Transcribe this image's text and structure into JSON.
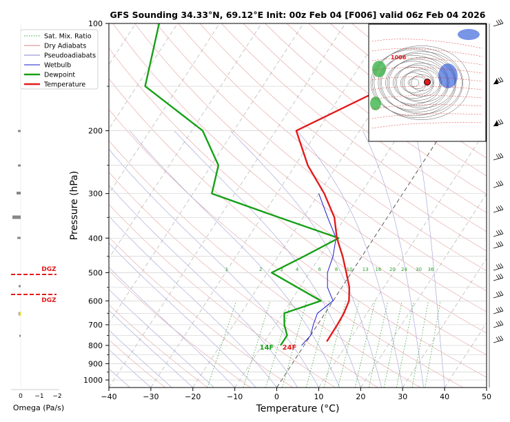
{
  "chart_data": {
    "type": "line",
    "title": "GFS Sounding 34.33°N, 69.12°E Init: 00z Feb 04 [F006] valid 06z Feb 04 2026",
    "xlabel": "Temperature (°C)",
    "ylabel": "Pressure (hPa)",
    "xlim": [
      -40,
      50
    ],
    "ylim": [
      1050,
      100
    ],
    "y_scale": "log",
    "skew": "skew-T (isotherms slanted)",
    "xticks": [
      "−40",
      "−30",
      "−20",
      "−10",
      "0",
      "10",
      "20",
      "30",
      "40",
      "50"
    ],
    "yticks": [
      "100",
      "200",
      "300",
      "400",
      "500",
      "600",
      "700",
      "800",
      "900",
      "1000"
    ],
    "legend": {
      "placement": "top-left",
      "entries": [
        {
          "label": "Sat. Mix. Ratio",
          "color": "#2ca02c",
          "style": "dotted"
        },
        {
          "label": "Dry Adiabats",
          "color": "#d98080",
          "style": "solid"
        },
        {
          "label": "Pseudoadiabats",
          "color": "#8080d0",
          "style": "solid"
        },
        {
          "label": "Wetbulb",
          "color": "#1a1acc",
          "style": "solid"
        },
        {
          "label": "Dewpoint",
          "color": "#16a016",
          "style": "solid"
        },
        {
          "label": "Temperature",
          "color": "#e31a1c",
          "style": "solid"
        }
      ]
    },
    "series": [
      {
        "name": "Temperature",
        "color": "#e31a1c",
        "points": [
          {
            "p": 780,
            "t": 4.8
          },
          {
            "p": 700,
            "t": 4.7
          },
          {
            "p": 650,
            "t": 4.5
          },
          {
            "p": 600,
            "t": 3.8
          },
          {
            "p": 550,
            "t": 1.8
          },
          {
            "p": 500,
            "t": -1.2
          },
          {
            "p": 450,
            "t": -4.6
          },
          {
            "p": 400,
            "t": -8.8
          },
          {
            "p": 350,
            "t": -12.6
          },
          {
            "p": 300,
            "t": -18.7
          },
          {
            "p": 250,
            "t": -27.0
          },
          {
            "p": 200,
            "t": -35.1
          },
          {
            "p": 150,
            "t": -20.2
          },
          {
            "p": 100,
            "t": -32.3
          }
        ]
      },
      {
        "name": "Dewpoint",
        "color": "#16a016",
        "points": [
          {
            "p": 800,
            "t": -5.6
          },
          {
            "p": 750,
            "t": -5.6
          },
          {
            "p": 700,
            "t": -7.9
          },
          {
            "p": 650,
            "t": -9.7
          },
          {
            "p": 600,
            "t": -2.9
          },
          {
            "p": 500,
            "t": -19.0
          },
          {
            "p": 450,
            "t": -13.8
          },
          {
            "p": 400,
            "t": -8.4
          },
          {
            "p": 350,
            "t": -25.8
          },
          {
            "p": 300,
            "t": -45.5
          },
          {
            "p": 250,
            "t": -48.3
          },
          {
            "p": 200,
            "t": -57.4
          },
          {
            "p": 150,
            "t": -78.0
          },
          {
            "p": 100,
            "t": -84.4
          }
        ]
      },
      {
        "name": "Wetbulb",
        "color": "#1a1acc",
        "points": [
          {
            "p": 800,
            "t": -0.6
          },
          {
            "p": 750,
            "t": 0.0
          },
          {
            "p": 700,
            "t": -1.0
          },
          {
            "p": 650,
            "t": -1.8
          },
          {
            "p": 600,
            "t": 0.0
          },
          {
            "p": 550,
            "t": -3.4
          },
          {
            "p": 500,
            "t": -5.7
          },
          {
            "p": 450,
            "t": -6.9
          },
          {
            "p": 400,
            "t": -9.0
          },
          {
            "p": 350,
            "t": -14.2
          },
          {
            "p": 300,
            "t": -20.0
          }
        ]
      }
    ],
    "mixing_ratio_labels": [
      "1",
      "2",
      "3",
      "4",
      "6",
      "8",
      "10",
      "13",
      "16",
      "20",
      "24",
      "30",
      "36"
    ],
    "surface_labels": {
      "dewpoint": "14F",
      "temperature": "24F"
    },
    "omega": {
      "axis_label": "Omega (Pa/s)",
      "ticks": [
        "0",
        "−1",
        "−2"
      ],
      "dgz_label": "DGZ",
      "dgz_bounds_hpa": [
        505,
        580
      ]
    },
    "inset_map": {
      "contour_label": "1006"
    }
  }
}
